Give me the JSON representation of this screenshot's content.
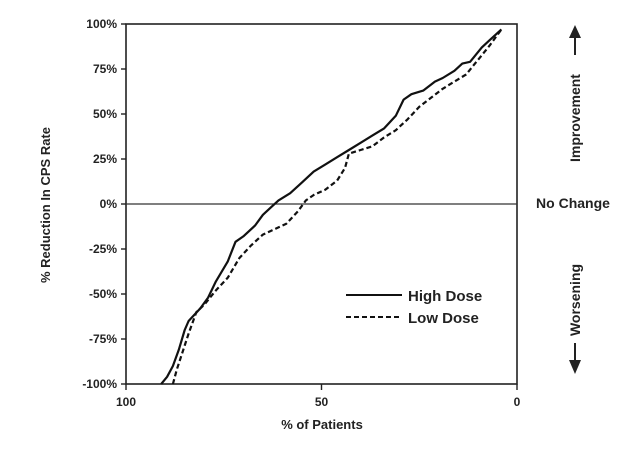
{
  "chart_data": {
    "type": "line",
    "title": "",
    "xlabel": "% of Patients",
    "ylabel": "% Reduction In CPS Rate",
    "xlim": [
      100,
      0
    ],
    "ylim": [
      -100,
      100
    ],
    "x_reversed": true,
    "x_ticks": [
      100,
      50,
      0
    ],
    "x_tick_labels": [
      "100",
      "50",
      "0"
    ],
    "y_ticks": [
      100,
      75,
      50,
      25,
      0,
      -25,
      -50,
      -75,
      -100
    ],
    "y_tick_labels": [
      "100%",
      "75%",
      "50%",
      "25%",
      "0%",
      "-25%",
      "-50%",
      "-75%",
      "-100%"
    ],
    "grid": false,
    "reference_line": {
      "y": 0,
      "label": "No Change"
    },
    "side_annotations": {
      "top": "Improvement",
      "bottom": "Worsening"
    },
    "legend": {
      "position": "lower-right-inside",
      "entries": [
        "High Dose",
        "Low Dose"
      ]
    },
    "series": [
      {
        "name": "High Dose",
        "style": "solid",
        "color": "#111111",
        "x": [
          91,
          89.5,
          88,
          86.5,
          85,
          84,
          81,
          79,
          77,
          74,
          72,
          70,
          67,
          65,
          63,
          61,
          58,
          55,
          52,
          49,
          46,
          43,
          40,
          37,
          34,
          31,
          29,
          27,
          24,
          21,
          19,
          16,
          14,
          12,
          9,
          7,
          4
        ],
        "y": [
          -100,
          -96,
          -90,
          -81,
          -70,
          -65,
          -58,
          -52,
          -43,
          -32,
          -21,
          -18,
          -12,
          -6,
          -2,
          2,
          6,
          12,
          18,
          22,
          26,
          30,
          34,
          38,
          42,
          49,
          58,
          61,
          63,
          68,
          70,
          74,
          78,
          79,
          87,
          91,
          97
        ]
      },
      {
        "name": "Low Dose",
        "style": "dashed",
        "color": "#111111",
        "x": [
          88,
          87,
          85.5,
          84,
          82,
          80,
          77,
          74,
          71,
          68,
          65,
          62,
          59,
          56,
          54,
          52,
          49,
          46,
          44,
          43,
          40,
          37,
          34,
          31,
          28,
          25,
          22,
          19,
          16,
          13,
          10,
          7,
          4
        ],
        "y": [
          -100,
          -92,
          -82,
          -72,
          -60,
          -56,
          -48,
          -41,
          -30,
          -23,
          -17,
          -14,
          -11,
          -4,
          2,
          5,
          8,
          13,
          20,
          28,
          30,
          32,
          37,
          41,
          47,
          54,
          59,
          64,
          68,
          72,
          80,
          88,
          97
        ]
      }
    ]
  }
}
